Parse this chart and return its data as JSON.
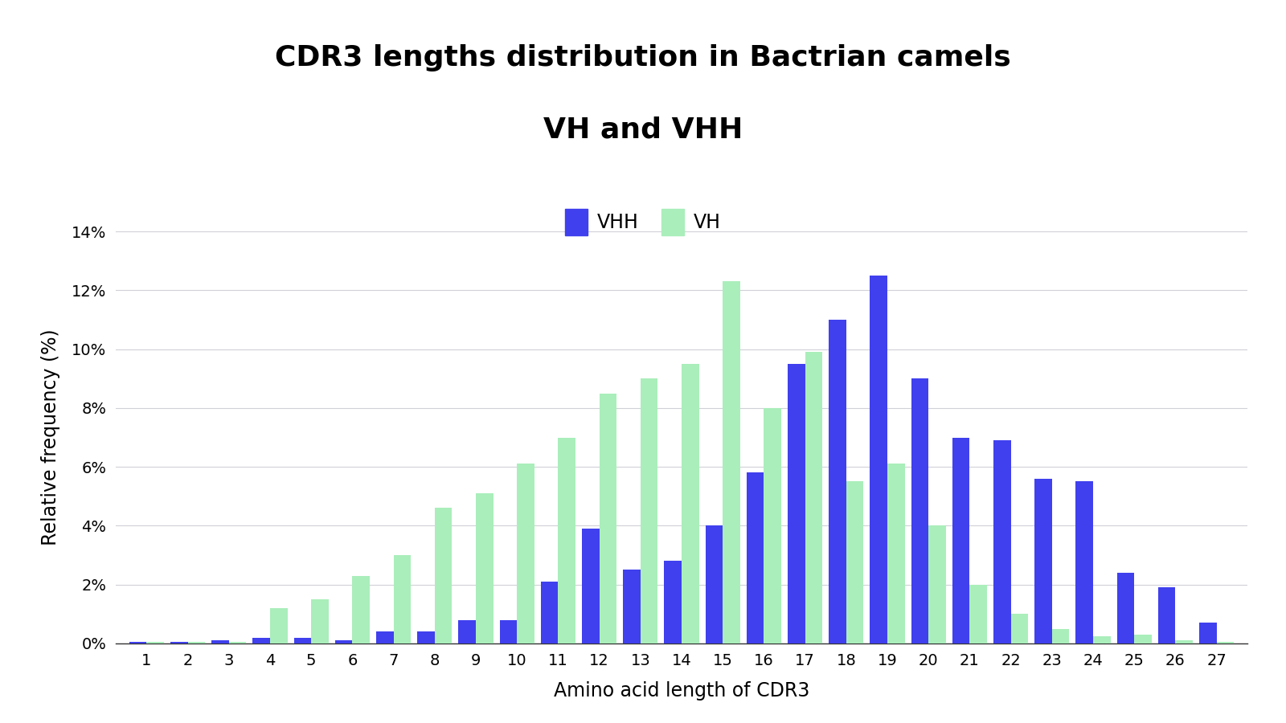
{
  "categories": [
    1,
    2,
    3,
    4,
    5,
    6,
    7,
    8,
    9,
    10,
    11,
    12,
    13,
    14,
    15,
    16,
    17,
    18,
    19,
    20,
    21,
    22,
    23,
    24,
    25,
    26,
    27
  ],
  "VHH": [
    0.05,
    0.05,
    0.1,
    0.2,
    0.2,
    0.1,
    0.4,
    0.4,
    0.8,
    0.8,
    2.1,
    3.9,
    2.5,
    2.8,
    4.0,
    5.8,
    9.5,
    11.0,
    12.5,
    9.0,
    7.0,
    6.9,
    5.6,
    5.5,
    2.4,
    1.9,
    0.7
  ],
  "VH": [
    0.05,
    0.05,
    0.05,
    1.2,
    1.5,
    2.3,
    3.0,
    4.6,
    5.1,
    6.1,
    7.0,
    8.5,
    9.0,
    9.5,
    12.3,
    8.0,
    9.9,
    5.5,
    6.1,
    4.0,
    2.0,
    1.0,
    0.5,
    0.25,
    0.3,
    0.1,
    0.05
  ],
  "VHH_color": "#4040EE",
  "VH_color": "#AAEEBB",
  "title_line1": "CDR3 lengths distribution in Bactrian camels",
  "title_line2": "VH and VHH",
  "xlabel": "Amino acid length of CDR3",
  "ylabel": "Relative frequency (%)",
  "ylim": [
    0,
    14
  ],
  "yticks": [
    0,
    2,
    4,
    6,
    8,
    10,
    12,
    14
  ],
  "ytick_labels": [
    "0%",
    "2%",
    "4%",
    "6%",
    "8%",
    "10%",
    "12%",
    "14%"
  ],
  "background_color": "#ffffff",
  "title_fontsize": 26,
  "axis_label_fontsize": 17,
  "tick_fontsize": 14,
  "legend_fontsize": 17,
  "bar_width": 0.42,
  "legend_labels": [
    "VHH",
    "VH"
  ]
}
